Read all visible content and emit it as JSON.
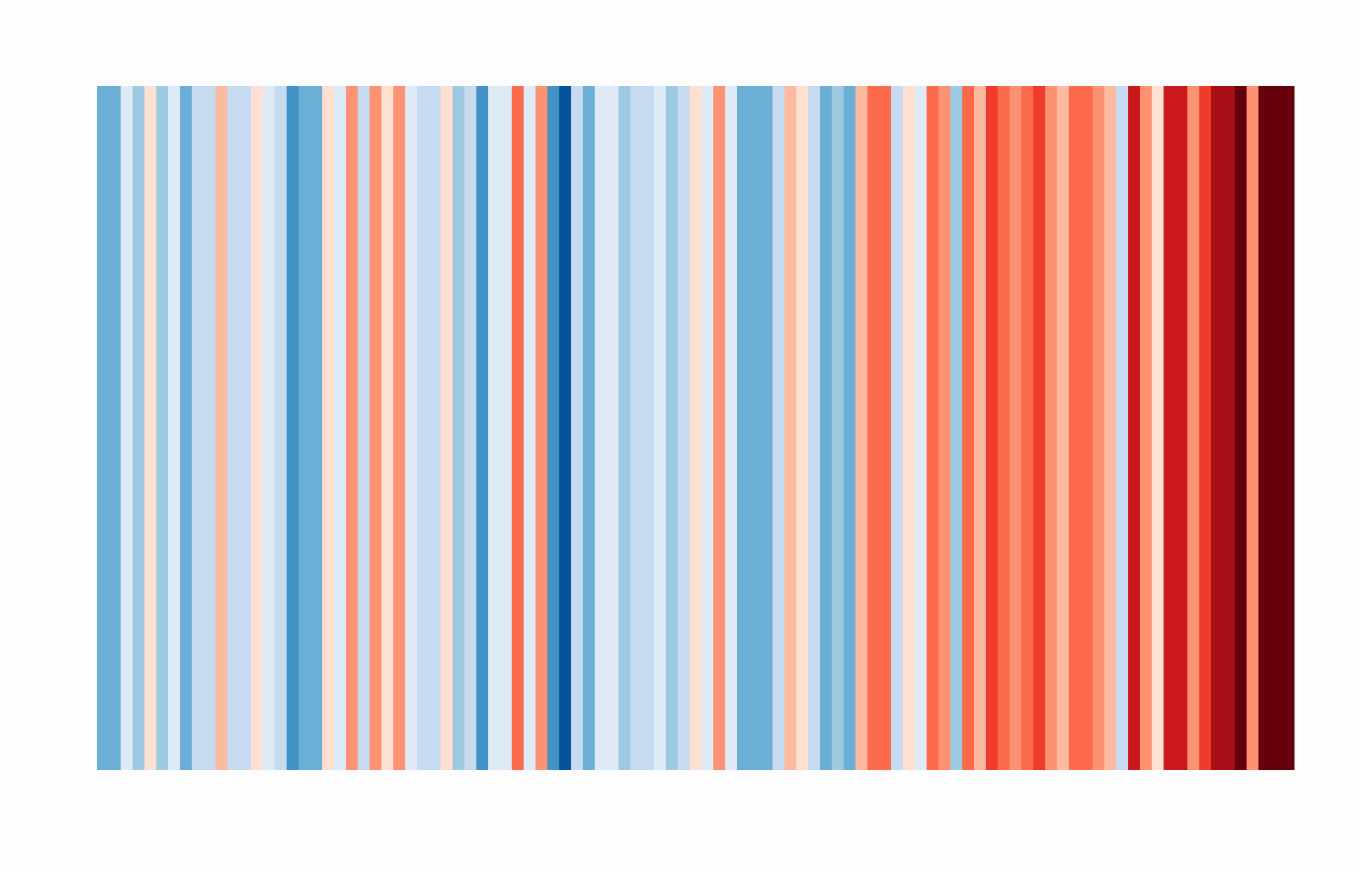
{
  "chart_data": {
    "type": "stripes",
    "colors": [
      "#6baed6",
      "#6baed6",
      "#deebf7",
      "#9ecae1",
      "#fee0d2",
      "#9ecae1",
      "#deebf7",
      "#6baed6",
      "#c6dbef",
      "#c6dbef",
      "#fcbba1",
      "#c6dbef",
      "#c6dbef",
      "#fee0d2",
      "#deebf7",
      "#c6dbef",
      "#4292c6",
      "#6baed6",
      "#6baed6",
      "#fee0d2",
      "#deebf7",
      "#fc9272",
      "#c6dbef",
      "#fc9272",
      "#fee0d2",
      "#fc9272",
      "#deebf7",
      "#c6dbef",
      "#c6dbef",
      "#fee0d2",
      "#9ecae1",
      "#c6dbef",
      "#4292c6",
      "#deebf7",
      "#deebf7",
      "#fb6a4a",
      "#deebf7",
      "#fc9272",
      "#4292c6",
      "#08519c",
      "#c6dbef",
      "#6baed6",
      "#deebf7",
      "#deebf7",
      "#9ecae1",
      "#c6dbef",
      "#c6dbef",
      "#deebf7",
      "#9ecae1",
      "#c6dbef",
      "#fee0d2",
      "#deebf7",
      "#fc9272",
      "#deebf7",
      "#6baed6",
      "#6baed6",
      "#6baed6",
      "#c6dbef",
      "#fcbba1",
      "#fee0d2",
      "#c6dbef",
      "#6baed6",
      "#9ecae1",
      "#6baed6",
      "#fcbba1",
      "#fb6a4a",
      "#fb6a4a",
      "#c6dbef",
      "#fee0d2",
      "#deebf7",
      "#fb6a4a",
      "#fc9272",
      "#9ecae1",
      "#fb6a4a",
      "#fcbba1",
      "#ef3b2c",
      "#fb6a4a",
      "#fc9272",
      "#fb6a4a",
      "#ef3b2c",
      "#fc9272",
      "#fcbba1",
      "#fb6a4a",
      "#fb6a4a",
      "#fc9272",
      "#fcbba1",
      "#c6dbef",
      "#cb181d",
      "#fc9272",
      "#fee0d2",
      "#cb181d",
      "#cb181d",
      "#fc9272",
      "#ef3b2c",
      "#a50f15",
      "#a50f15",
      "#67000d",
      "#fc9272",
      "#67000d",
      "#67000d",
      "#67000d"
    ]
  }
}
